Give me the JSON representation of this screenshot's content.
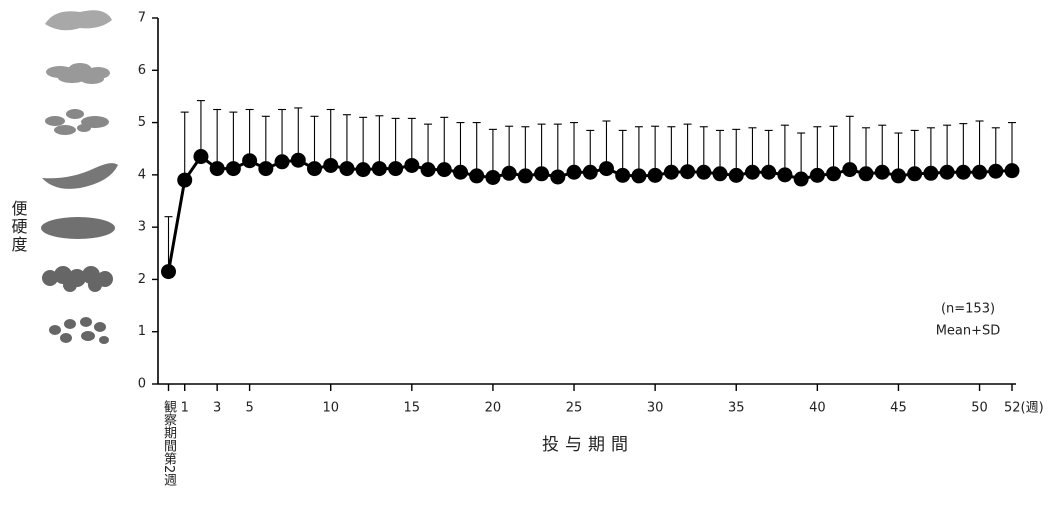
{
  "chart_data": {
    "type": "line",
    "y_label": "便硬度",
    "x_label": "投与期間",
    "annotations": [
      "(n=153)",
      "Mean+SD"
    ],
    "x": [
      0,
      1,
      2,
      3,
      4,
      5,
      6,
      7,
      8,
      9,
      10,
      11,
      12,
      13,
      14,
      15,
      16,
      17,
      18,
      19,
      20,
      21,
      22,
      23,
      24,
      25,
      26,
      27,
      28,
      29,
      30,
      31,
      32,
      33,
      34,
      35,
      36,
      37,
      38,
      39,
      40,
      41,
      42,
      43,
      44,
      45,
      46,
      47,
      48,
      49,
      50,
      51,
      52
    ],
    "series": [
      {
        "color": "#000000",
        "values": [
          2.15,
          3.9,
          4.35,
          4.12,
          4.12,
          4.27,
          4.12,
          4.25,
          4.28,
          4.12,
          4.18,
          4.12,
          4.1,
          4.12,
          4.12,
          4.18,
          4.1,
          4.1,
          4.05,
          3.98,
          3.95,
          4.03,
          3.98,
          4.02,
          3.96,
          4.05,
          4.05,
          4.12,
          3.99,
          3.98,
          3.99,
          4.05,
          4.06,
          4.05,
          4.02,
          3.99,
          4.05,
          4.05,
          4.0,
          3.92,
          3.99,
          4.02,
          4.1,
          4.02,
          4.05,
          3.98,
          4.02,
          4.03,
          4.05,
          4.05,
          4.05,
          4.07,
          4.08
        ],
        "errors": [
          1.05,
          1.3,
          1.07,
          1.13,
          1.08,
          0.98,
          1.0,
          1.0,
          1.0,
          1.0,
          1.07,
          1.03,
          1.0,
          1.01,
          0.96,
          0.9,
          0.87,
          1.0,
          0.95,
          1.02,
          0.92,
          0.9,
          0.94,
          0.95,
          1.01,
          0.95,
          0.8,
          0.91,
          0.86,
          0.94,
          0.94,
          0.87,
          0.91,
          0.87,
          0.83,
          0.88,
          0.85,
          0.8,
          0.95,
          0.88,
          0.93,
          0.91,
          1.02,
          0.88,
          0.9,
          0.82,
          0.83,
          0.87,
          0.9,
          0.93,
          0.98,
          0.83,
          0.92
        ]
      }
    ],
    "xlim": [
      0,
      52
    ],
    "xticks": [
      {
        "value": 0,
        "label": "観察期間第2週"
      },
      1,
      3,
      5,
      10,
      15,
      20,
      25,
      30,
      35,
      40,
      45,
      50,
      {
        "value": 52,
        "label": "52(週)"
      }
    ],
    "ylim": [
      0,
      7
    ],
    "yticks": [
      0,
      1,
      2,
      3,
      4,
      5,
      6,
      7
    ]
  }
}
